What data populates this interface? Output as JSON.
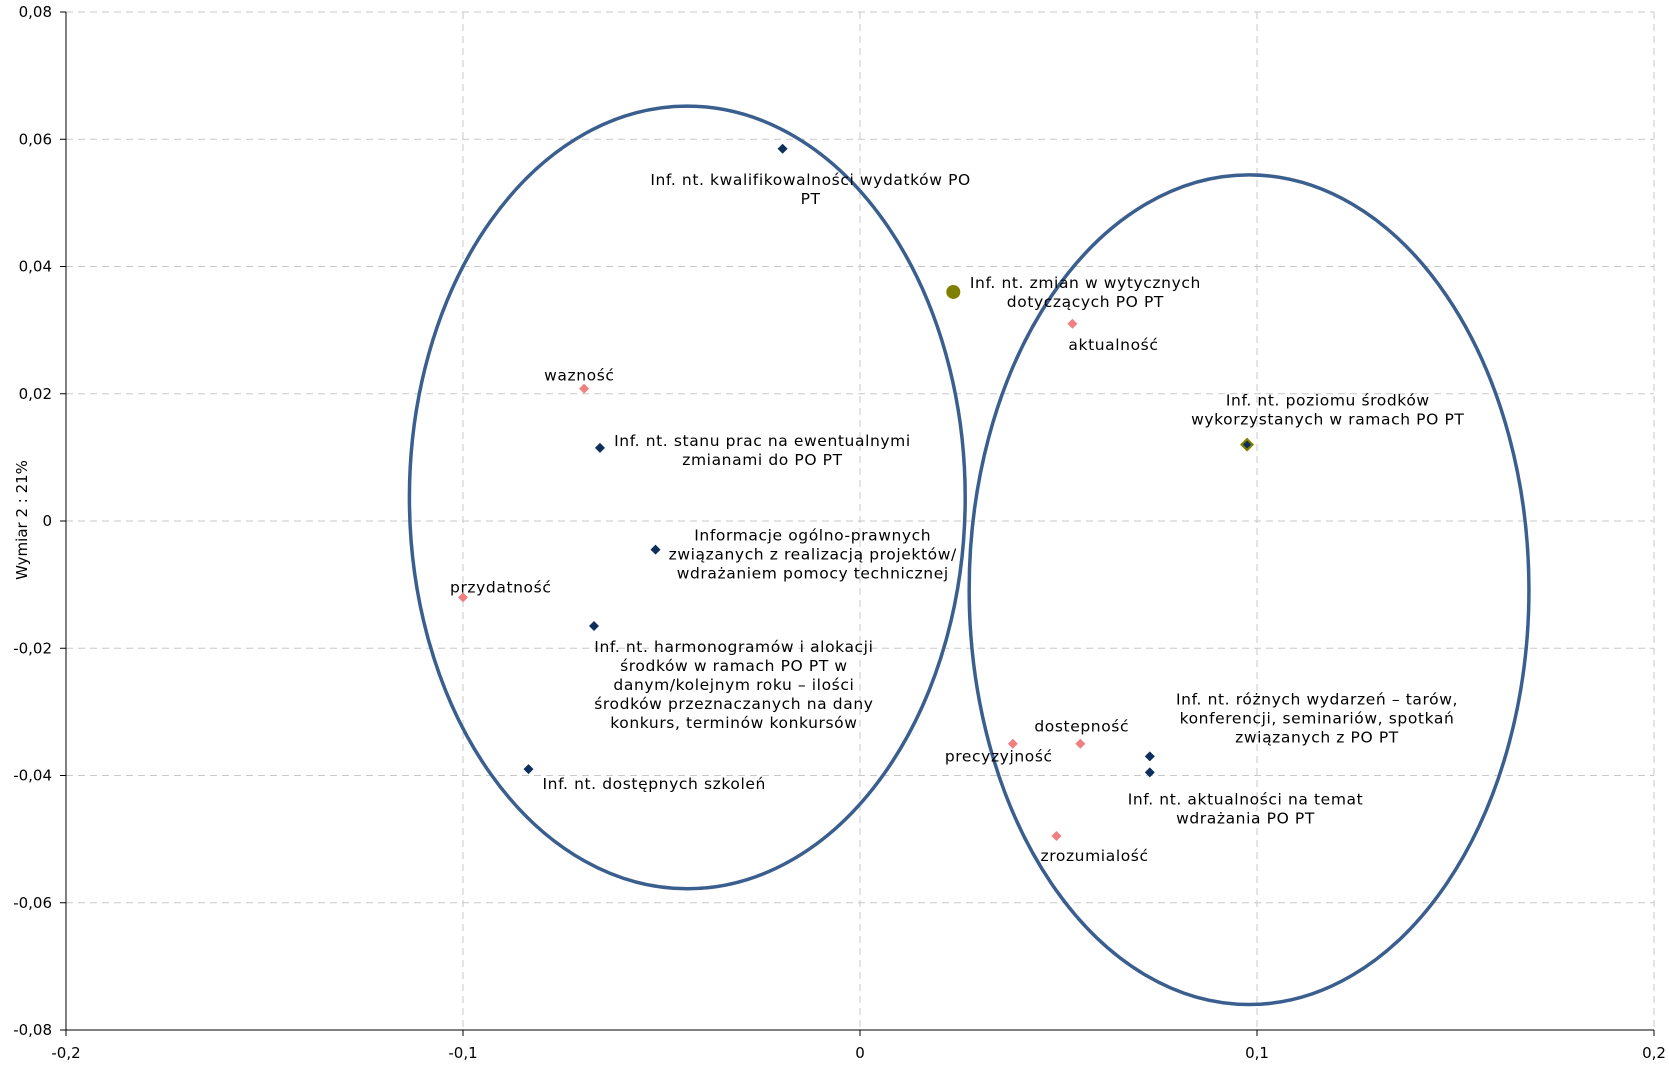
{
  "chart_data": {
    "type": "scatter",
    "ylabel": "Wymiar 2 : 21%",
    "xlim": [
      -0.2,
      0.2
    ],
    "ylim": [
      -0.08,
      0.08
    ],
    "grid": true,
    "x_ticks": [
      "-0,2",
      "-0,1",
      "0",
      "0,1",
      "0,2"
    ],
    "y_ticks": [
      "0,08",
      "0,06",
      "0,04",
      "0,02",
      "0",
      "-0,02",
      "-0,04",
      "-0,06",
      "-0,08"
    ],
    "colors": {
      "dark": "#0d2f5e",
      "pink": "#f08080",
      "olive": "#808000",
      "ellipse": "#3a5f8f",
      "grid": "#c8c8c8"
    },
    "points": [
      {
        "x": -0.0195,
        "y": 0.0585,
        "marker": "diamond",
        "color": "dark",
        "label_lines": [
          "Inf. nt. kwalifikowalności wydatków PO",
          "PT"
        ]
      },
      {
        "x": 0.0235,
        "y": 0.036,
        "marker": "circle",
        "color": "olive",
        "label_lines": [
          "Inf. nt. zmian w wytycznych",
          "dotyczących PO PT"
        ]
      },
      {
        "x": 0.0535,
        "y": 0.031,
        "marker": "diamond",
        "color": "pink",
        "label_lines": [
          "aktualność"
        ]
      },
      {
        "x": -0.0695,
        "y": 0.0208,
        "marker": "diamond",
        "color": "pink",
        "label_lines": [
          "wazność"
        ]
      },
      {
        "x": 0.0975,
        "y": 0.012,
        "marker": "diamond-olive",
        "color": "dark",
        "label_lines": [
          "Inf. nt. poziomu środków",
          "wykorzystanych w ramach PO PT"
        ]
      },
      {
        "x": -0.0655,
        "y": 0.0115,
        "marker": "diamond",
        "color": "dark",
        "label_lines": [
          "Inf. nt. stanu prac na ewentualnymi",
          "zmianami do PO PT"
        ]
      },
      {
        "x": -0.0515,
        "y": -0.0045,
        "marker": "diamond",
        "color": "dark",
        "label_lines": [
          "Informacje ogólno-prawnych",
          "związanych z realizacją projektów/",
          "wdrażaniem pomocy technicznej"
        ]
      },
      {
        "x": -0.1,
        "y": -0.012,
        "marker": "diamond",
        "color": "pink",
        "label_lines": [
          "przydatność"
        ]
      },
      {
        "x": -0.067,
        "y": -0.0165,
        "marker": "diamond",
        "color": "dark",
        "label_lines": [
          "Inf. nt. harmonogramów i alokacji",
          "środków w ramach PO PT w",
          "danym/kolejnym roku – ilości",
          "środków przeznaczanych na dany",
          "konkurs, terminów konkursów"
        ]
      },
      {
        "x": 0.0555,
        "y": -0.035,
        "marker": "diamond",
        "color": "pink",
        "label_lines": [
          "dostepność"
        ]
      },
      {
        "x": 0.0385,
        "y": -0.035,
        "marker": "diamond",
        "color": "pink",
        "label_lines": [
          "precyzyjność"
        ]
      },
      {
        "x": 0.073,
        "y": -0.037,
        "marker": "diamond",
        "color": "dark",
        "label_lines": [
          "Inf. nt. różnych wydarzeń – tarów,",
          "konferencji, seminariów, spotkań",
          "związanych z PO PT"
        ]
      },
      {
        "x": 0.073,
        "y": -0.0395,
        "marker": "diamond",
        "color": "dark",
        "label_lines": [
          "Inf. nt. aktualności na temat",
          "wdrażania PO PT"
        ]
      },
      {
        "x": -0.0835,
        "y": -0.039,
        "marker": "diamond",
        "color": "dark",
        "label_lines": [
          "Inf. nt. dostępnych szkoleń"
        ]
      },
      {
        "x": 0.0495,
        "y": -0.0495,
        "marker": "diamond",
        "color": "pink",
        "label_lines": [
          "zrozumialość"
        ]
      }
    ],
    "ellipses": [
      {
        "cx": -0.0435,
        "cy": 0.0037,
        "rx": 0.07,
        "ry": 0.0615
      },
      {
        "cx": 0.098,
        "cy": -0.0108,
        "rx": 0.0705,
        "ry": 0.0652
      }
    ]
  }
}
